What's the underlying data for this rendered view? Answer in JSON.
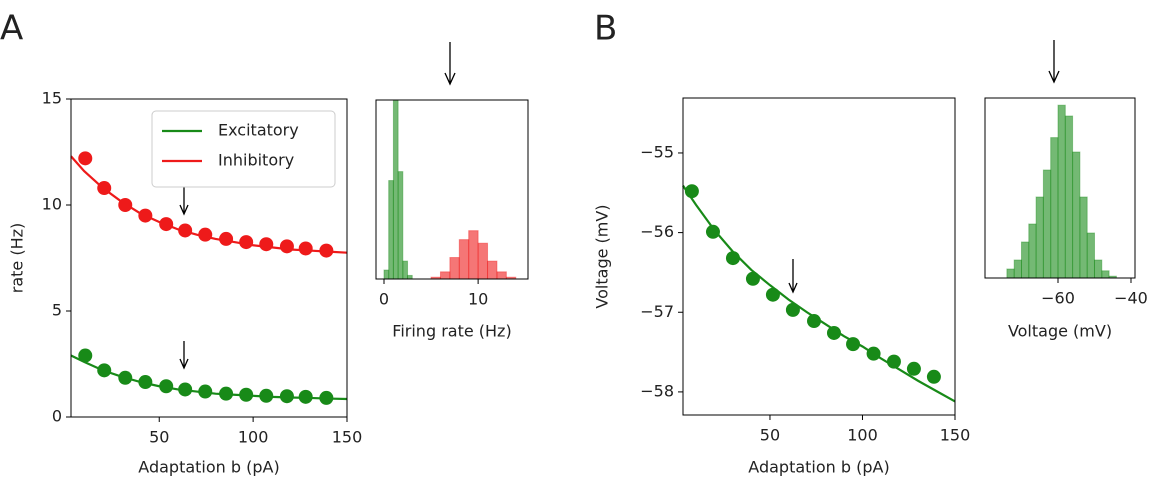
{
  "panel_labels": [
    "A",
    "B"
  ],
  "chart_data": [
    {
      "type": "scatter",
      "xlabel": "Adaptation b (pA)",
      "ylabel": "rate (Hz)",
      "xlim": [
        3,
        150
      ],
      "xticks": [
        50,
        100,
        150
      ],
      "ylim": [
        0,
        15
      ],
      "yticks": [
        0,
        5,
        10,
        15
      ],
      "legend": "upper right",
      "series": [
        {
          "name": "Excitatory",
          "color": "#188a18",
          "x": [
            10.6,
            20.7,
            31.9,
            42.6,
            53.7,
            63.8,
            74.5,
            85.6,
            96.3,
            107,
            118,
            128,
            139
          ],
          "values": [
            2.9,
            2.2,
            1.85,
            1.65,
            1.45,
            1.3,
            1.2,
            1.1,
            1.05,
            1.0,
            0.98,
            0.95,
            0.9
          ],
          "fit_x": [
            3,
            10,
            20,
            30,
            40,
            50,
            60,
            70,
            80,
            90,
            100,
            110,
            120,
            130,
            140,
            150
          ],
          "fit_values": [
            2.9,
            2.6,
            2.2,
            1.9,
            1.65,
            1.45,
            1.3,
            1.2,
            1.1,
            1.05,
            1.0,
            0.95,
            0.92,
            0.9,
            0.87,
            0.85
          ]
        },
        {
          "name": "Inhibitory",
          "color": "#ee1a1a",
          "x": [
            10.6,
            20.7,
            31.9,
            42.6,
            53.7,
            63.8,
            74.5,
            85.6,
            96.3,
            107,
            118,
            128,
            139
          ],
          "values": [
            12.2,
            10.8,
            10.0,
            9.5,
            9.1,
            8.8,
            8.6,
            8.4,
            8.25,
            8.15,
            8.05,
            7.95,
            7.85
          ],
          "fit_x": [
            3,
            10,
            20,
            30,
            40,
            50,
            60,
            70,
            80,
            90,
            100,
            110,
            120,
            130,
            140,
            150
          ],
          "fit_values": [
            12.3,
            11.6,
            10.8,
            10.15,
            9.6,
            9.2,
            8.85,
            8.6,
            8.4,
            8.25,
            8.1,
            8.0,
            7.9,
            7.85,
            7.8,
            7.75
          ]
        }
      ]
    },
    {
      "type": "histogram",
      "xlabel": "Firing rate (Hz)",
      "xlim": [
        -0.85,
        15.3
      ],
      "xticks": [
        0,
        10
      ],
      "ylim": [
        0,
        1
      ],
      "series": [
        {
          "color": "#188a18",
          "bins": [
            0,
            0.5,
            1,
            1.5,
            2,
            2.5,
            3
          ],
          "values": [
            0.05,
            0.55,
            1.0,
            0.6,
            0.1,
            0.02
          ]
        },
        {
          "color": "#ee1a1a",
          "bins": [
            5,
            6,
            7,
            8,
            9,
            10,
            11,
            12,
            13,
            14
          ],
          "values": [
            0.01,
            0.04,
            0.12,
            0.22,
            0.27,
            0.2,
            0.1,
            0.04,
            0.01
          ]
        }
      ]
    },
    {
      "type": "scatter",
      "xlabel": "Adaptation b (pA)",
      "ylabel": "Voltage (mV)",
      "xlim": [
        3,
        150
      ],
      "xticks": [
        50,
        100,
        150
      ],
      "ylim": [
        -58.29,
        -54.31
      ],
      "yticks": [
        {
          "value": -55,
          "label": "−55"
        },
        {
          "value": -56,
          "label": "−56"
        },
        {
          "value": -57,
          "label": "−57"
        },
        {
          "value": -58,
          "label": "−58"
        }
      ],
      "series": [
        {
          "color": "#188a18",
          "x": [
            7.8,
            19.2,
            30,
            40.8,
            51.6,
            62.4,
            73.8,
            84.6,
            94.9,
            106,
            117,
            127.8,
            138.6
          ],
          "values": [
            -55.48,
            -55.99,
            -56.32,
            -56.58,
            -56.78,
            -56.97,
            -57.11,
            -57.26,
            -57.4,
            -57.52,
            -57.62,
            -57.71,
            -57.81
          ],
          "fit_x": [
            3,
            10,
            20,
            30,
            40,
            50,
            60,
            70,
            80,
            90,
            100,
            110,
            120,
            130,
            140,
            150
          ],
          "fit_values": [
            -55.41,
            -55.65,
            -55.97,
            -56.24,
            -56.47,
            -56.66,
            -56.84,
            -57.0,
            -57.15,
            -57.3,
            -57.43,
            -57.58,
            -57.72,
            -57.86,
            -57.99,
            -58.12
          ]
        }
      ]
    },
    {
      "type": "histogram",
      "xlabel": "Voltage (mV)",
      "xlim": [
        -80,
        -38.9
      ],
      "xticks": [
        {
          "value": -60,
          "label": "−60"
        },
        {
          "value": -40,
          "label": "−40"
        }
      ],
      "ylim": [
        0,
        1
      ],
      "series": [
        {
          "color": "#188a18",
          "bins": [
            -74,
            -72,
            -70,
            -68,
            -66,
            -64,
            -62,
            -60,
            -58,
            -56,
            -54,
            -52,
            -50,
            -48,
            -46,
            -44
          ],
          "values": [
            0.05,
            0.1,
            0.2,
            0.3,
            0.45,
            0.6,
            0.78,
            0.96,
            0.9,
            0.7,
            0.45,
            0.25,
            0.1,
            0.04,
            0.01
          ]
        }
      ]
    }
  ]
}
